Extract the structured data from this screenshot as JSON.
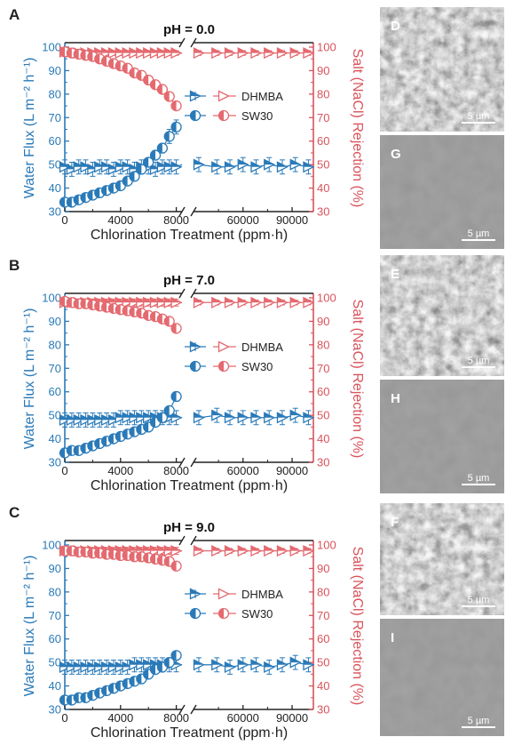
{
  "panels_labels": [
    "A",
    "B",
    "C"
  ],
  "chart_data": [
    {
      "type": "scatter",
      "panel": "A",
      "title": "pH = 0.0",
      "xlabel": "Chlorination Treatment (ppm·h)",
      "ylabel_left": "Water Flux (L m⁻² h⁻¹)",
      "ylabel_right": "Salt (NaCl) Rejection (%)",
      "x_ticks_left": [
        "0",
        "4000",
        "8000"
      ],
      "x_ticks_right": [
        "60000",
        "90000"
      ],
      "x_break_segments": [
        [
          0,
          8600
        ],
        [
          33000,
          103000
        ]
      ],
      "ylim_left": [
        30,
        100
      ],
      "ylim_right": [
        30,
        100
      ],
      "y_ticks_left": [
        "30",
        "40",
        "50",
        "60",
        "70",
        "80",
        "90",
        "100"
      ],
      "y_ticks_right": [
        "30",
        "40",
        "50",
        "60",
        "70",
        "80",
        "90",
        "100"
      ],
      "legend": [
        "DHMBA",
        "SW30"
      ],
      "series": [
        {
          "name": "DHMBA",
          "axis": "left",
          "color": "#2a7ab8",
          "marker": "triangle",
          "x": [
            0,
            500,
            1000,
            1500,
            2000,
            2500,
            3000,
            3500,
            4000,
            4500,
            5000,
            5500,
            6000,
            6500,
            7000,
            7500,
            8000,
            33000,
            44000,
            52000,
            60000,
            68000,
            76000,
            84000,
            92000,
            100000
          ],
          "y": [
            49,
            48,
            49,
            49,
            48,
            49,
            49,
            48,
            49,
            49,
            48,
            49,
            49,
            48,
            49,
            49,
            49,
            50,
            49,
            49,
            50,
            49,
            50,
            49,
            50,
            49
          ],
          "err": [
            3,
            3,
            3,
            3,
            3,
            3,
            3,
            3,
            3,
            3,
            3,
            3,
            3,
            3,
            3,
            3,
            3,
            3,
            3,
            3,
            3,
            3,
            3,
            3,
            3,
            3
          ]
        },
        {
          "name": "DHMBA",
          "axis": "right",
          "color": "#e46a70",
          "marker": "triangle",
          "x": [
            0,
            500,
            1000,
            1500,
            2000,
            2500,
            3000,
            3500,
            4000,
            4500,
            5000,
            5500,
            6000,
            6500,
            7000,
            7500,
            8000,
            33000,
            44000,
            52000,
            60000,
            68000,
            76000,
            84000,
            92000,
            100000
          ],
          "y": [
            98,
            98,
            97.5,
            97.5,
            97.5,
            97.5,
            97.5,
            97.5,
            97.5,
            97.5,
            97.5,
            97.5,
            97.5,
            97.5,
            97.5,
            97.5,
            97.5,
            97.5,
            97.5,
            97.5,
            97.5,
            97.5,
            97.5,
            97.5,
            97.5,
            97.5
          ],
          "err": [
            1,
            1,
            1,
            1,
            1,
            1,
            1,
            1,
            1,
            1,
            1,
            1,
            1,
            1,
            1,
            1,
            1,
            1,
            1,
            1,
            1,
            1,
            1,
            1,
            1,
            1
          ]
        },
        {
          "name": "SW30",
          "axis": "left",
          "color": "#2a7ab8",
          "marker": "circle",
          "x": [
            0,
            500,
            1000,
            1500,
            2000,
            2500,
            3000,
            3500,
            4000,
            4500,
            5000,
            5500,
            6000,
            6500,
            7000,
            7500,
            8000
          ],
          "y": [
            34,
            34,
            35,
            36,
            37,
            38,
            39,
            40,
            41,
            43,
            45,
            48,
            51,
            54,
            57,
            62,
            66
          ],
          "err": [
            1,
            1,
            1,
            1,
            1,
            1,
            1,
            1,
            1,
            1,
            1,
            1,
            1.5,
            2,
            2,
            3,
            3
          ]
        },
        {
          "name": "SW30",
          "axis": "right",
          "color": "#e46a70",
          "marker": "circle",
          "x": [
            0,
            500,
            1000,
            1500,
            2000,
            2500,
            3000,
            3500,
            4000,
            4500,
            5000,
            5500,
            6000,
            6500,
            7000,
            7500,
            8000
          ],
          "y": [
            98,
            97.5,
            97,
            96.5,
            96,
            95,
            94,
            93,
            92,
            91,
            89,
            88,
            86,
            84,
            82,
            79,
            75
          ],
          "err": [
            0.5,
            0.5,
            0.5,
            0.5,
            0.5,
            0.5,
            0.5,
            0.5,
            0.5,
            0.5,
            1,
            1,
            1,
            1,
            1,
            1,
            1
          ]
        }
      ]
    },
    {
      "type": "scatter",
      "panel": "B",
      "title": "pH = 7.0",
      "xlabel": "Chlorination Treatment (ppm·h)",
      "ylabel_left": "Water Flux (L m⁻² h⁻¹)",
      "ylabel_right": "Salt (NaCl) Rejection (%)",
      "x_ticks_left": [
        "0",
        "4000",
        "8000"
      ],
      "x_ticks_right": [
        "60000",
        "90000"
      ],
      "x_break_segments": [
        [
          0,
          8600
        ],
        [
          33000,
          103000
        ]
      ],
      "ylim_left": [
        30,
        100
      ],
      "ylim_right": [
        30,
        100
      ],
      "y_ticks_left": [
        "30",
        "40",
        "50",
        "60",
        "70",
        "80",
        "90",
        "100"
      ],
      "y_ticks_right": [
        "30",
        "40",
        "50",
        "60",
        "70",
        "80",
        "90",
        "100"
      ],
      "legend": [
        "DHMBA",
        "SW30"
      ],
      "series": [
        {
          "name": "DHMBA",
          "axis": "left",
          "color": "#2a7ab8",
          "marker": "triangle",
          "x": [
            0,
            500,
            1000,
            1500,
            2000,
            2500,
            3000,
            3500,
            4000,
            4500,
            5000,
            5500,
            6000,
            6500,
            7000,
            7500,
            8000,
            33000,
            44000,
            52000,
            60000,
            68000,
            76000,
            84000,
            92000,
            100000
          ],
          "y": [
            48,
            48,
            48,
            48,
            48,
            48,
            48,
            48,
            49,
            49,
            49,
            49,
            49,
            49,
            49,
            49,
            49,
            49,
            50,
            49,
            49,
            49,
            49,
            49,
            50,
            49
          ],
          "err": [
            3,
            3,
            3,
            3,
            3,
            3,
            3,
            3,
            3,
            3,
            3,
            3,
            3,
            3,
            3,
            3,
            3,
            3,
            3,
            3,
            3,
            3,
            3,
            3,
            3,
            3
          ]
        },
        {
          "name": "DHMBA",
          "axis": "right",
          "color": "#e46a70",
          "marker": "triangle",
          "x": [
            0,
            500,
            1000,
            1500,
            2000,
            2500,
            3000,
            3500,
            4000,
            4500,
            5000,
            5500,
            6000,
            6500,
            7000,
            7500,
            8000,
            33000,
            44000,
            52000,
            60000,
            68000,
            76000,
            84000,
            92000,
            100000
          ],
          "y": [
            98,
            98,
            98,
            98,
            98,
            98,
            98,
            98,
            98,
            98,
            98,
            98,
            98,
            98,
            98,
            98,
            98,
            98,
            98,
            98,
            98,
            98,
            98,
            98,
            98,
            98
          ],
          "err": [
            1.5,
            1.5,
            1.5,
            1.5,
            1.5,
            1.5,
            1.5,
            1.5,
            1.5,
            1.5,
            1.5,
            1.5,
            1.5,
            1.5,
            1.5,
            1.5,
            1.5,
            1,
            1,
            1,
            1,
            1,
            1,
            1,
            1,
            1
          ]
        },
        {
          "name": "SW30",
          "axis": "left",
          "color": "#2a7ab8",
          "marker": "circle",
          "x": [
            0,
            500,
            1000,
            1500,
            2000,
            2500,
            3000,
            3500,
            4000,
            4500,
            5000,
            5500,
            6000,
            6500,
            7000,
            7500,
            8000
          ],
          "y": [
            34,
            35,
            35,
            36,
            37,
            38,
            39,
            40,
            41,
            42,
            43,
            44,
            45,
            47,
            49,
            52,
            58
          ],
          "err": [
            1,
            1,
            1,
            1,
            1,
            1,
            1,
            1,
            1,
            1,
            1,
            1,
            1,
            1,
            1,
            1.5,
            2
          ]
        },
        {
          "name": "SW30",
          "axis": "right",
          "color": "#e46a70",
          "marker": "circle",
          "x": [
            0,
            500,
            1000,
            1500,
            2000,
            2500,
            3000,
            3500,
            4000,
            4500,
            5000,
            5500,
            6000,
            6500,
            7000,
            7500,
            8000
          ],
          "y": [
            98.5,
            98,
            97.5,
            97.5,
            97,
            96.5,
            96,
            95.5,
            95,
            94.5,
            94,
            93.5,
            92.5,
            92,
            91,
            90,
            87
          ],
          "err": [
            0.5,
            0.5,
            0.5,
            0.5,
            0.5,
            0.5,
            0.5,
            0.5,
            0.5,
            0.5,
            0.5,
            0.5,
            0.5,
            0.5,
            0.5,
            0.5,
            0.5
          ]
        }
      ]
    },
    {
      "type": "scatter",
      "panel": "C",
      "title": "pH = 9.0",
      "xlabel": "Chlorination Treatment (ppm·h)",
      "ylabel_left": "Water Flux (L m⁻² h⁻¹)",
      "ylabel_right": "Salt (NaCl) Rejection (%)",
      "x_ticks_left": [
        "0",
        "4000",
        "8000"
      ],
      "x_ticks_right": [
        "60000",
        "90000"
      ],
      "x_break_segments": [
        [
          0,
          8600
        ],
        [
          33000,
          103000
        ]
      ],
      "ylim_left": [
        30,
        100
      ],
      "ylim_right": [
        30,
        100
      ],
      "y_ticks_left": [
        "30",
        "40",
        "50",
        "60",
        "70",
        "80",
        "90",
        "100"
      ],
      "y_ticks_right": [
        "30",
        "40",
        "50",
        "60",
        "70",
        "80",
        "90",
        "100"
      ],
      "legend": [
        "DHMBA",
        "SW30"
      ],
      "series": [
        {
          "name": "DHMBA",
          "axis": "left",
          "color": "#2a7ab8",
          "marker": "triangle",
          "x": [
            0,
            500,
            1000,
            1500,
            2000,
            2500,
            3000,
            3500,
            4000,
            4500,
            5000,
            5500,
            6000,
            6500,
            7000,
            7500,
            8000,
            33000,
            44000,
            52000,
            60000,
            68000,
            76000,
            84000,
            92000,
            100000
          ],
          "y": [
            48,
            48,
            48,
            48,
            48,
            48,
            48,
            48,
            48,
            48,
            49,
            49,
            49,
            49,
            49,
            49,
            49,
            49,
            49,
            48,
            49,
            49,
            48,
            49,
            50,
            49
          ],
          "err": [
            3,
            3,
            3,
            3,
            3,
            3,
            3,
            3,
            3,
            3,
            3,
            3,
            3,
            3,
            3,
            3,
            3,
            3,
            3,
            3,
            3,
            3,
            3,
            3,
            3,
            3
          ]
        },
        {
          "name": "DHMBA",
          "axis": "right",
          "color": "#e46a70",
          "marker": "triangle",
          "x": [
            0,
            500,
            1000,
            1500,
            2000,
            2500,
            3000,
            3500,
            4000,
            4500,
            5000,
            5500,
            6000,
            6500,
            7000,
            7500,
            8000,
            33000,
            44000,
            52000,
            60000,
            68000,
            76000,
            84000,
            92000,
            100000
          ],
          "y": [
            97.5,
            97.5,
            97.5,
            97.5,
            97.5,
            97.5,
            97.5,
            97.5,
            97.5,
            97.5,
            97.5,
            97.5,
            97.5,
            97.5,
            97.5,
            97.5,
            97.5,
            97.5,
            97.5,
            97.5,
            97.5,
            97.5,
            97.5,
            97.5,
            97.5,
            97.5
          ],
          "err": [
            1.5,
            1.5,
            1.5,
            1.5,
            1.5,
            1.5,
            1.5,
            1.5,
            1.5,
            1.5,
            1.5,
            1.5,
            1.5,
            1.5,
            1.5,
            1.5,
            1.5,
            1,
            1,
            1,
            1,
            1,
            1,
            1,
            1,
            1
          ]
        },
        {
          "name": "SW30",
          "axis": "left",
          "color": "#2a7ab8",
          "marker": "circle",
          "x": [
            0,
            500,
            1000,
            1500,
            2000,
            2500,
            3000,
            3500,
            4000,
            4500,
            5000,
            5500,
            6000,
            6500,
            7000,
            7500,
            8000
          ],
          "y": [
            34,
            34,
            35,
            35,
            36,
            37,
            38,
            39,
            40,
            41,
            42,
            43,
            45,
            47,
            48,
            50,
            53
          ],
          "err": [
            1,
            1,
            1,
            1,
            1,
            1,
            1,
            1,
            1,
            1,
            1,
            1,
            1,
            1,
            1,
            1,
            1
          ]
        },
        {
          "name": "SW30",
          "axis": "right",
          "color": "#e46a70",
          "marker": "circle",
          "x": [
            0,
            500,
            1000,
            1500,
            2000,
            2500,
            3000,
            3500,
            4000,
            4500,
            5000,
            5500,
            6000,
            6500,
            7000,
            7500,
            8000
          ],
          "y": [
            97.5,
            97.5,
            97,
            97,
            96.5,
            96.5,
            96,
            96,
            95.5,
            95.5,
            95,
            95,
            94.5,
            94,
            93.5,
            93,
            91
          ],
          "err": [
            0.5,
            0.5,
            0.5,
            0.5,
            0.5,
            0.5,
            0.5,
            0.5,
            0.5,
            0.5,
            0.5,
            0.5,
            0.5,
            0.5,
            0.5,
            0.5,
            0.5
          ]
        }
      ]
    }
  ],
  "sem_images": [
    {
      "label": "D",
      "scale": "5 µm",
      "tone": "rough"
    },
    {
      "label": "G",
      "scale": "5 µm",
      "tone": "smooth"
    },
    {
      "label": "E",
      "scale": "5 µm",
      "tone": "rough"
    },
    {
      "label": "H",
      "scale": "5 µm",
      "tone": "smooth"
    },
    {
      "label": "F",
      "scale": "5 µm",
      "tone": "rough"
    },
    {
      "label": "I",
      "scale": "5 µm",
      "tone": "smooth"
    }
  ]
}
